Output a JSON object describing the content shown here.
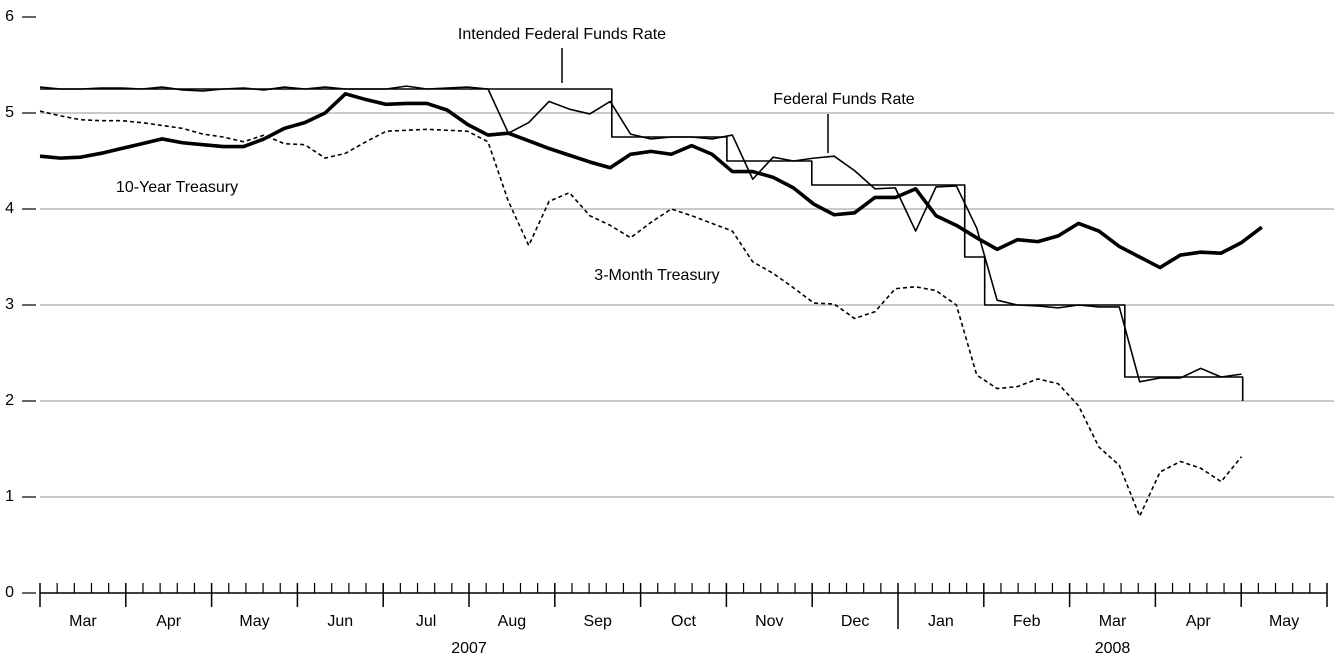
{
  "chart_data": {
    "type": "line",
    "categories": [
      "Mar",
      "Apr",
      "May",
      "Jun",
      "Jul",
      "Aug",
      "Sep",
      "Oct",
      "Nov",
      "Dec",
      "Jan",
      "Feb",
      "Mar",
      "Apr",
      "May"
    ],
    "years": [
      {
        "label": "2007",
        "months": 10
      },
      {
        "label": "2008",
        "months": 5
      }
    ],
    "xlim": [
      0,
      63.2
    ],
    "x": [
      0,
      1,
      2,
      3,
      4,
      5,
      6,
      7,
      8,
      9,
      10,
      11,
      12,
      13,
      14,
      15,
      16,
      17,
      18,
      19,
      20,
      21,
      22,
      23,
      24,
      25,
      26,
      27,
      28,
      29,
      30,
      31,
      32,
      33,
      34,
      35,
      36,
      37,
      38,
      39,
      40,
      41,
      42,
      43,
      44,
      45,
      46,
      47,
      48,
      49,
      50,
      51,
      52,
      53,
      54,
      55,
      56,
      57,
      58,
      59,
      60
    ],
    "ylim": [
      0,
      6
    ],
    "yticks": [
      0,
      1,
      2,
      3,
      4,
      5,
      6
    ],
    "grid": true,
    "series": [
      {
        "name": "Intended Federal Funds Rate",
        "color": "#000000",
        "style": "thin",
        "x": [
          0,
          28.08,
          28.08,
          33.73,
          33.73,
          37.9,
          37.9,
          45.41,
          45.41,
          46.39,
          46.39,
          53.27,
          53.27,
          59.06,
          59.06
        ],
        "values": [
          5.25,
          5.25,
          4.75,
          4.75,
          4.5,
          4.5,
          4.25,
          4.25,
          3.5,
          3.5,
          3.0,
          3.0,
          2.25,
          2.25,
          2.0
        ]
      },
      {
        "name": "Federal Funds Rate",
        "color": "#000000",
        "style": "thin",
        "values": [
          5.27,
          5.25,
          5.25,
          5.26,
          5.26,
          5.25,
          5.27,
          5.24,
          5.23,
          5.25,
          5.26,
          5.24,
          5.27,
          5.25,
          5.27,
          5.25,
          5.25,
          5.25,
          5.28,
          5.25,
          5.26,
          5.27,
          5.25,
          4.79,
          4.9,
          5.12,
          5.04,
          4.99,
          5.12,
          4.78,
          4.73,
          4.75,
          4.75,
          4.73,
          4.77,
          4.31,
          4.54,
          4.5,
          4.53,
          4.55,
          4.4,
          4.21,
          4.22,
          3.77,
          4.23,
          4.24,
          3.8,
          3.05,
          3.0,
          2.99,
          2.97,
          3.0,
          2.98,
          2.98,
          2.2,
          2.24,
          2.24,
          2.34,
          2.25,
          2.28,
          null
        ]
      },
      {
        "name": "10-Year Treasury",
        "color": "#000000",
        "style": "thick",
        "values": [
          4.55,
          4.53,
          4.54,
          4.58,
          4.63,
          4.68,
          4.73,
          4.69,
          4.67,
          4.65,
          4.65,
          4.73,
          4.84,
          4.9,
          5.0,
          5.2,
          5.14,
          5.09,
          5.1,
          5.1,
          5.03,
          4.88,
          4.77,
          4.79,
          4.71,
          4.63,
          4.56,
          4.49,
          4.43,
          4.57,
          4.6,
          4.57,
          4.66,
          4.57,
          4.39,
          4.39,
          4.33,
          4.22,
          4.05,
          3.94,
          3.96,
          4.12,
          4.12,
          4.21,
          3.93,
          3.83,
          3.7,
          3.58,
          3.68,
          3.66,
          3.72,
          3.85,
          3.77,
          3.61,
          3.5,
          3.39,
          3.52,
          3.55,
          3.54,
          3.65,
          3.81
        ]
      },
      {
        "name": "3-Month Treasury",
        "color": "#000000",
        "style": "dashed",
        "values": [
          5.02,
          4.97,
          4.93,
          4.92,
          4.92,
          4.9,
          4.87,
          4.84,
          4.78,
          4.75,
          4.7,
          4.77,
          4.68,
          4.67,
          4.53,
          4.58,
          4.7,
          4.81,
          4.82,
          4.83,
          4.82,
          4.81,
          4.7,
          4.08,
          3.62,
          4.08,
          4.17,
          3.93,
          3.83,
          3.7,
          3.86,
          4.0,
          3.93,
          3.85,
          3.77,
          3.45,
          3.33,
          3.18,
          3.02,
          3.01,
          2.86,
          2.93,
          3.17,
          3.19,
          3.15,
          3.0,
          2.27,
          2.13,
          2.15,
          2.23,
          2.18,
          1.95,
          1.52,
          1.33,
          0.8,
          1.26,
          1.37,
          1.3,
          1.16,
          1.42,
          null
        ]
      }
    ]
  }
}
